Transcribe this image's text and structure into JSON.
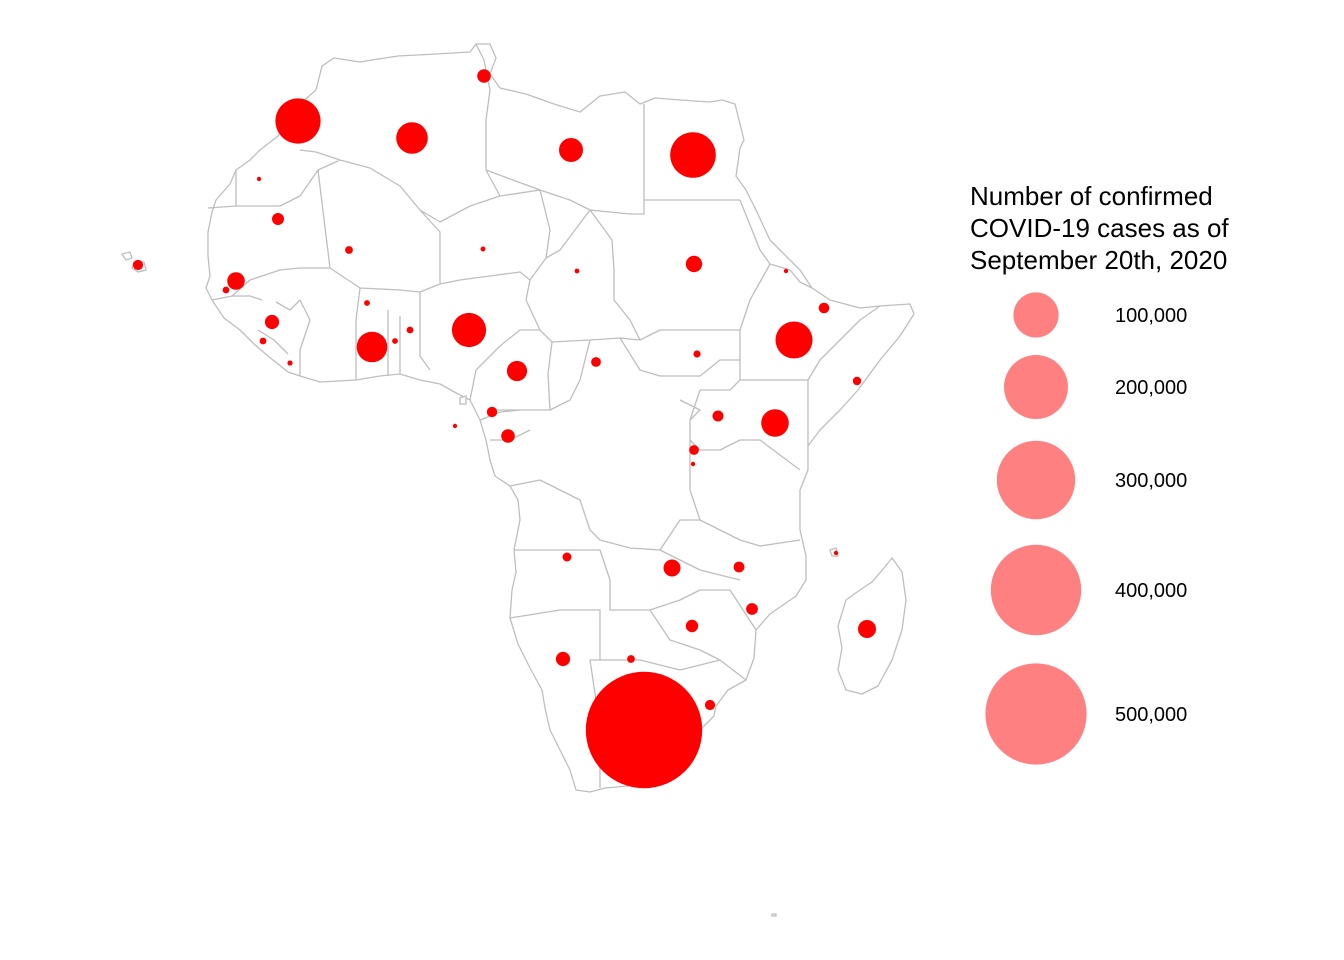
{
  "legend": {
    "title_lines": [
      "Number of confirmed",
      "COVID-19 cases as of",
      "September 20th, 2020"
    ],
    "entries": [
      {
        "value": 100000,
        "label": "100,000"
      },
      {
        "value": 200000,
        "label": "200,000"
      },
      {
        "value": 300000,
        "label": "300,000"
      },
      {
        "value": 400000,
        "label": "400,000"
      },
      {
        "value": 500000,
        "label": "500,000"
      }
    ]
  },
  "colors": {
    "bubble": "#ff0000",
    "legend_bubble": "#ff8080",
    "border": "#bebebe",
    "land": "#ffffff"
  },
  "map_data": {
    "region": "Africa",
    "bubbles": [
      {
        "region": "south-africa",
        "cases": 661936
      },
      {
        "region": "morocco",
        "cases": 100000
      },
      {
        "region": "egypt",
        "cases": 102000
      },
      {
        "region": "ethiopia",
        "cases": 67000
      },
      {
        "region": "nigeria",
        "cases": 57000
      },
      {
        "region": "ghana",
        "cases": 46000
      },
      {
        "region": "algeria",
        "cases": 49000
      },
      {
        "region": "kenya",
        "cases": 37000
      },
      {
        "region": "libya",
        "cases": 28000
      },
      {
        "region": "cameroon",
        "cases": 20000
      },
      {
        "region": "madagascar",
        "cases": 16000
      },
      {
        "region": "senegal",
        "cases": 15000
      },
      {
        "region": "zambia",
        "cases": 14000
      },
      {
        "region": "cote-divoire",
        "cases": 19000
      },
      {
        "region": "guinea",
        "cases": 10000
      },
      {
        "region": "gabon",
        "cases": 9000
      },
      {
        "region": "sudan",
        "cases": 13000
      },
      {
        "region": "namibia",
        "cases": 10000
      },
      {
        "region": "mauritania",
        "cases": 7000
      },
      {
        "region": "tunisia",
        "cases": 9000
      },
      {
        "region": "zimbabwe",
        "cases": 7600
      },
      {
        "region": "eswatini",
        "cases": 5100
      },
      {
        "region": "mozambique",
        "cases": 6700
      },
      {
        "region": "malawi",
        "cases": 5700
      },
      {
        "region": "uganda",
        "cases": 6000
      },
      {
        "region": "djibouti",
        "cases": 5400
      },
      {
        "region": "cape-verde",
        "cases": 5000
      },
      {
        "region": "car",
        "cases": 4700
      },
      {
        "region": "angola",
        "cases": 4000
      },
      {
        "region": "congo",
        "cases": 5000
      },
      {
        "region": "rwanda",
        "cases": 4700
      },
      {
        "region": "sierra-leone",
        "cases": 2200
      },
      {
        "region": "liberia",
        "cases": 1300
      },
      {
        "region": "guinea-bissau",
        "cases": 2300
      },
      {
        "region": "benin",
        "cases": 2300
      },
      {
        "region": "somalia",
        "cases": 3400
      },
      {
        "region": "mali",
        "cases": 3000
      },
      {
        "region": "togo",
        "cases": 1700
      },
      {
        "region": "south-sudan",
        "cases": 2600
      },
      {
        "region": "gambia",
        "cases": 3500
      },
      {
        "region": "burkina-faso",
        "cases": 1700
      },
      {
        "region": "botswana",
        "cases": 2900
      },
      {
        "region": "chad",
        "cases": 1100
      },
      {
        "region": "niger",
        "cases": 1200
      },
      {
        "region": "equatorial-guinea",
        "cases": 5000
      },
      {
        "region": "western-sahara",
        "cases": 700
      },
      {
        "region": "eritrea",
        "cases": 360
      },
      {
        "region": "burundi",
        "cases": 470
      },
      {
        "region": "sao-tome",
        "cases": 900
      },
      {
        "region": "comoros",
        "cases": 480
      }
    ]
  }
}
